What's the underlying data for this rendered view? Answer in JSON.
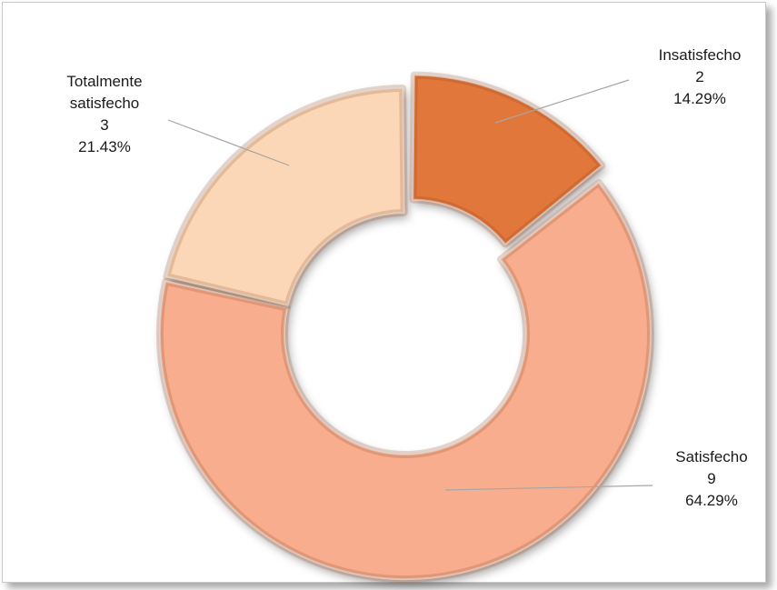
{
  "chart_data": {
    "type": "pie",
    "subtype": "doughnut",
    "start_angle_deg": 0,
    "exploded_slice": "Insatisfecho",
    "slices": [
      {
        "name": "Insatisfecho",
        "label_lines": [
          "Insatisfecho"
        ],
        "value": 2,
        "percent": "14.29%",
        "color": "#E2773A"
      },
      {
        "name": "Satisfecho",
        "label_lines": [
          "Satisfecho"
        ],
        "value": 9,
        "percent": "64.29%",
        "color": "#F8AE8E"
      },
      {
        "name": "Totalmente satisfecho",
        "label_lines": [
          "Totalmente",
          "satisfecho"
        ],
        "value": 3,
        "percent": "21.43%",
        "color": "#FBD7B8"
      }
    ]
  }
}
